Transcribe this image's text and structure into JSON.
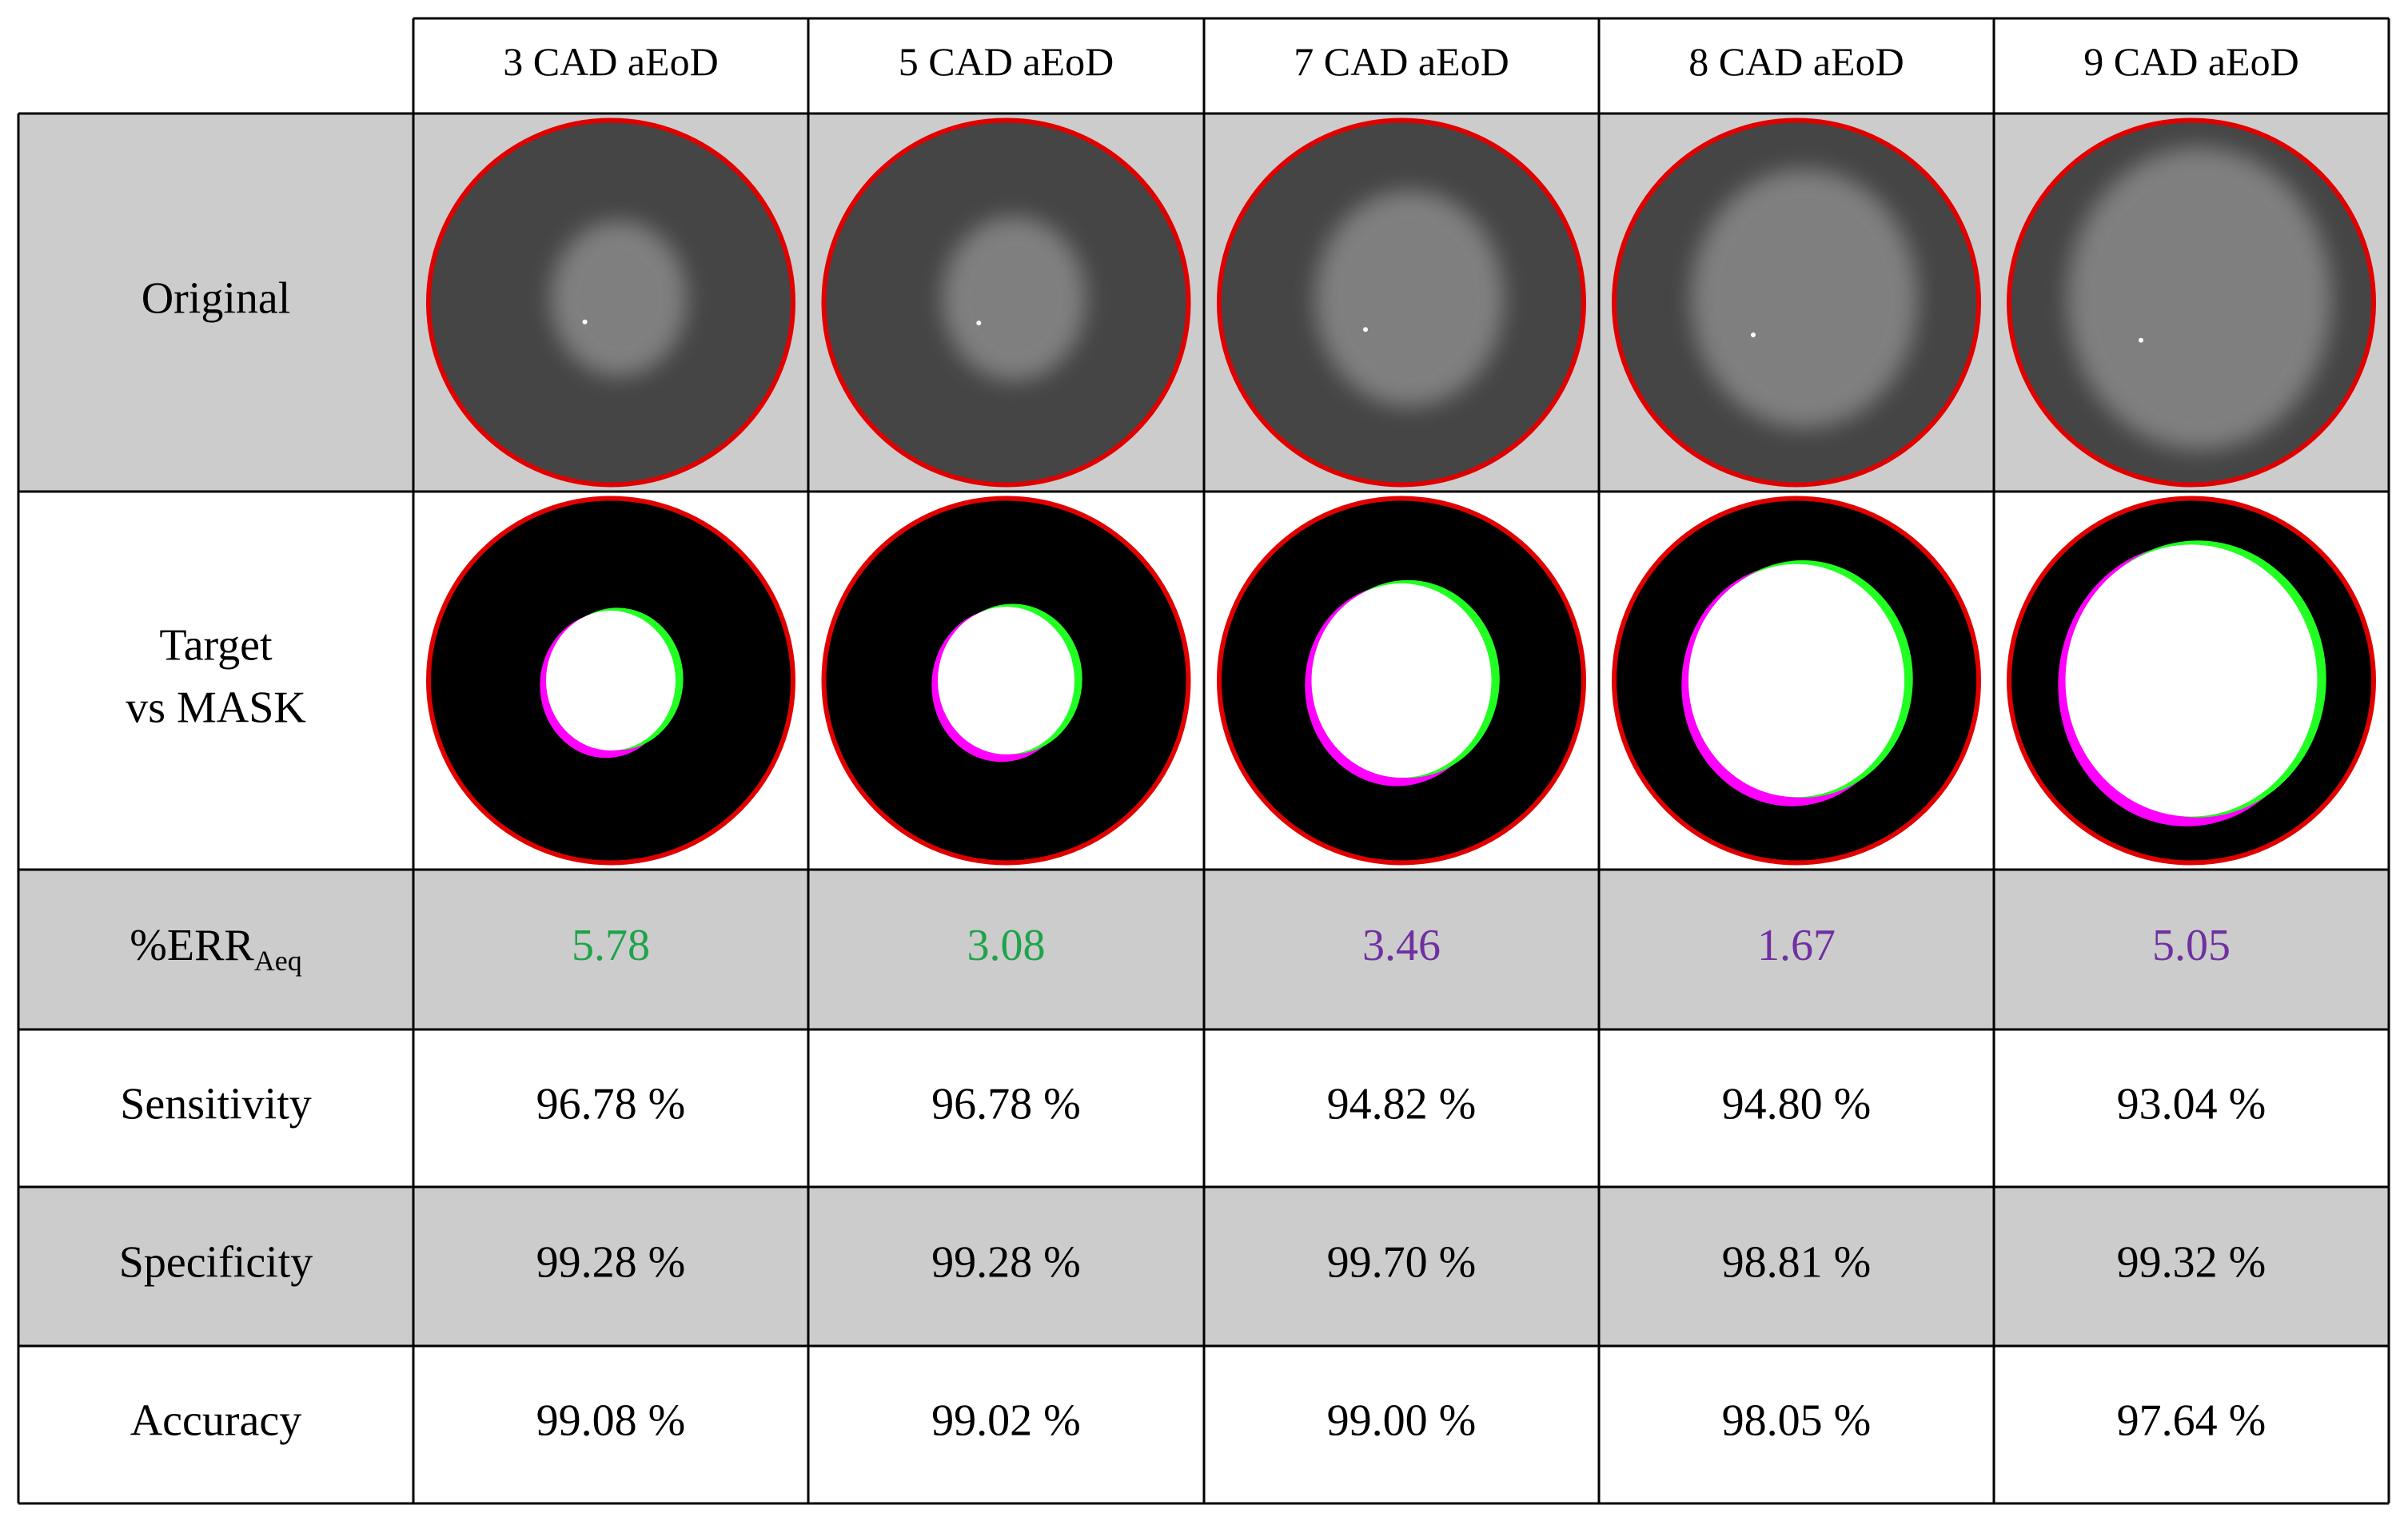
{
  "columns": [
    "3 CAD aEoD",
    "5 CAD aEoD",
    "7 CAD aEoD",
    "8 CAD aEoD",
    "9 CAD aEoD"
  ],
  "original_row": {
    "label": "Original"
  },
  "mask_row": {
    "label": [
      "Target",
      "vs MASK"
    ]
  },
  "err_row": {
    "label": {
      "text": "%ERR",
      "subscript": "Aeq"
    },
    "values": [
      "5.78",
      "3.08",
      "3.46",
      "1.67",
      "5.05"
    ],
    "colors": [
      "#1fa34a",
      "#1fa34a",
      "#7030a0",
      "#7030a0",
      "#7030a0"
    ]
  },
  "metric_rows": [
    {
      "label": "Sensitivity",
      "values": [
        "96.78 %",
        "96.78 %",
        "94.82 %",
        "94.80 %",
        "93.04 %"
      ]
    },
    {
      "label": "Specificity",
      "values": [
        "99.28 %",
        "99.28 %",
        "99.70 %",
        "98.81 %",
        "99.32 %"
      ]
    },
    {
      "label": "Accuracy",
      "values": [
        "99.08 %",
        "99.02 %",
        "99.00 %",
        "98.05 %",
        "97.64 %"
      ]
    }
  ]
}
